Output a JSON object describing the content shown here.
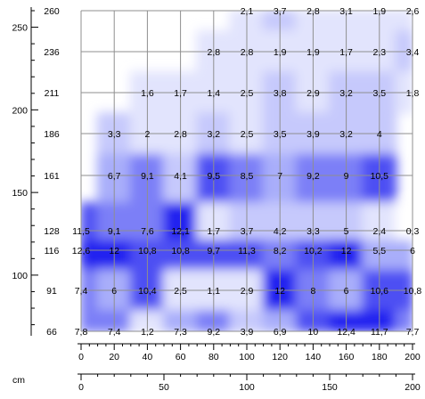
{
  "chart_data": {
    "type": "heatmap",
    "title": "",
    "xlabel": "",
    "ylabel": "",
    "unit_label": "cm",
    "x": [
      0,
      20,
      40,
      60,
      80,
      100,
      120,
      140,
      160,
      180,
      200
    ],
    "rows": [
      {
        "y": 260,
        "label": "260",
        "values": [
          null,
          null,
          null,
          null,
          null,
          "2,1",
          "3,7",
          "2,8",
          "3,1",
          "1,9",
          "2,6"
        ]
      },
      {
        "y": 236,
        "label": "236",
        "values": [
          null,
          null,
          null,
          null,
          "2,8",
          "2,8",
          "1,9",
          "1,9",
          "1,7",
          "2,3",
          "3,4"
        ]
      },
      {
        "y": 211,
        "label": "211",
        "values": [
          null,
          null,
          "1,6",
          "1,7",
          "1,4",
          "2,5",
          "3,8",
          "2,9",
          "3,2",
          "3,5",
          "1,8"
        ]
      },
      {
        "y": 186,
        "label": "186",
        "values": [
          null,
          "3,3",
          "2",
          "2,8",
          "3,2",
          "2,5",
          "3,5",
          "3,9",
          "3,2",
          "4",
          null
        ]
      },
      {
        "y": 161,
        "label": "161",
        "values": [
          null,
          "6,7",
          "9,1",
          "4,1",
          "9,5",
          "8,5",
          "7",
          "9,2",
          "9",
          "10,5",
          null
        ]
      },
      {
        "y": 128,
        "label": "128",
        "values": [
          "11,5",
          "9,1",
          "7,6",
          "12,1",
          "1,7",
          "3,7",
          "4,2",
          "3,3",
          "5",
          "2,4",
          "0,3"
        ]
      },
      {
        "y": 116,
        "label": "116",
        "values": [
          "12,6",
          "12",
          "10,8",
          "10,8",
          "9,7",
          "11,3",
          "8,2",
          "10,2",
          "12",
          "5,5",
          "6"
        ]
      },
      {
        "y": 91,
        "label": "91",
        "values": [
          "7,4",
          "6",
          "10,4",
          "2,5",
          "1,1",
          "2,9",
          "12",
          "8",
          "6",
          "10,6",
          "10,8"
        ]
      },
      {
        "y": 66,
        "label": "66",
        "values": [
          "7,8",
          "7,4",
          "1,2",
          "7,3",
          "9,2",
          "3,9",
          "6,9",
          "10",
          "12,4",
          "11,7",
          "7,7"
        ]
      }
    ],
    "y_axis_ticks": [
      "250",
      "200",
      "150",
      "100"
    ],
    "y_axis_tick_values": [
      250,
      200,
      150,
      100
    ],
    "x_axis_top_ticks": [
      "0",
      "20",
      "40",
      "60",
      "80",
      "100",
      "120",
      "140",
      "160",
      "180",
      "200"
    ],
    "x_axis_bottom_ticks": [
      "0",
      "50",
      "100",
      "150",
      "200"
    ],
    "x_axis_bottom_tick_values": [
      0,
      50,
      100,
      150,
      200
    ],
    "xlim": [
      0,
      200
    ],
    "ylim": [
      66,
      260
    ],
    "grid": true,
    "color_scale": {
      "low": "#ffffff",
      "mid": "#a9aefa",
      "high": "#2020f0",
      "grid": "#8f8f8f",
      "border": "#000000"
    }
  }
}
